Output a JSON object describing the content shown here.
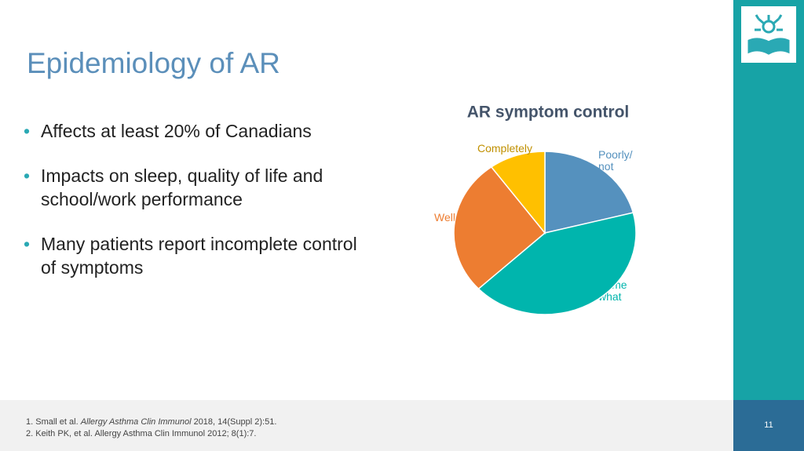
{
  "title": "Epidemiology of AR",
  "bullets": [
    "Affects at least 20% of Canadians",
    "Impacts on sleep, quality of life and school/work performance",
    "Many patients report incomplete control of symptoms"
  ],
  "footnotes": [
    {
      "prefix": "1. Small et al. ",
      "journal": "Allergy Asthma Clin Immunol",
      "suffix": " 2018, 14(Suppl 2):51."
    },
    "2. Keith PK, et al. Allergy Asthma Clin Immunol 2012; 8(1):7."
  ],
  "page_number": "11",
  "chart_data": {
    "type": "pie",
    "title": "AR symptom control",
    "categories": [
      "Poorly/not",
      "Somewhat",
      "Well",
      "Completely"
    ],
    "values": [
      21,
      42,
      27,
      10
    ],
    "colors": [
      "#5591be",
      "#00b5ad",
      "#ed7d31",
      "#ffc000"
    ],
    "label_colors": [
      "#5591be",
      "#00b5ad",
      "#ed7d31",
      "#c09000"
    ]
  }
}
